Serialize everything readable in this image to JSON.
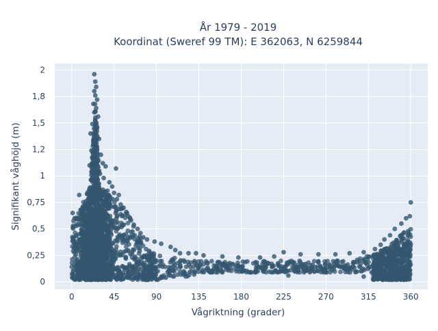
{
  "chart_data": {
    "type": "scatter",
    "title": "År 1979 - 2019",
    "subtitle": "Koordinat (Sweref 99 TM): E 362063, N 6259844",
    "xlabel": "Vågriktning (grader)",
    "ylabel": "Signifikant våghöjd (m)",
    "xlim": [
      -18,
      378
    ],
    "ylim": [
      -0.07,
      2.06
    ],
    "x_ticks": [
      0,
      45,
      90,
      135,
      180,
      225,
      270,
      315,
      360
    ],
    "x_tick_labels": [
      "0",
      "45",
      "90",
      "135",
      "180",
      "225",
      "270",
      "315",
      "360"
    ],
    "y_ticks": [
      0,
      0.25,
      0.5,
      0.75,
      1,
      1.25,
      1.5,
      1.75,
      2
    ],
    "y_tick_labels": [
      "0",
      "0,25",
      "0,5",
      "0,75",
      "1",
      "1,2",
      "1,5",
      "1,8",
      "2"
    ],
    "grid": true,
    "marker_color": "#34566f",
    "plot_background": "#e5ecf6",
    "series": [
      {
        "points": [
          [
            24,
            1.96
          ],
          [
            25,
            1.89
          ],
          [
            26,
            1.84
          ],
          [
            24,
            1.8
          ],
          [
            25,
            1.76
          ],
          [
            27,
            1.72
          ],
          [
            23,
            1.68
          ],
          [
            26,
            1.64
          ],
          [
            24,
            1.6
          ],
          [
            28,
            1.56
          ],
          [
            25,
            1.52
          ],
          [
            22,
            1.49
          ],
          [
            27,
            1.46
          ],
          [
            20,
            1.4
          ],
          [
            29,
            1.35
          ],
          [
            23,
            1.3
          ],
          [
            21,
            1.24
          ],
          [
            31,
            1.2
          ],
          [
            26,
            1.14
          ],
          [
            19,
            1.1
          ],
          [
            33,
            1.12
          ],
          [
            36,
            1.09
          ],
          [
            47,
            1.07
          ],
          [
            30,
            1.02
          ],
          [
            34,
            0.98
          ],
          [
            40,
            0.94
          ],
          [
            43,
            0.9
          ],
          [
            38,
            0.86
          ],
          [
            8,
            0.82
          ],
          [
            45,
            0.84
          ],
          [
            50,
            0.82
          ],
          [
            48,
            0.78
          ],
          [
            15,
            0.76
          ],
          [
            52,
            0.73
          ],
          [
            55,
            0.7
          ],
          [
            58,
            0.66
          ],
          [
            60,
            0.62
          ],
          [
            63,
            0.58
          ],
          [
            1,
            0.65
          ],
          [
            3,
            0.6
          ],
          [
            66,
            0.54
          ],
          [
            70,
            0.5
          ],
          [
            73,
            0.46
          ],
          [
            76,
            0.42
          ],
          [
            80,
            0.4
          ],
          [
            88,
            0.38
          ],
          [
            95,
            0.36
          ],
          [
            105,
            0.33
          ],
          [
            110,
            0.3
          ],
          [
            115,
            0.27
          ],
          [
            124,
            0.27
          ],
          [
            132,
            0.27
          ],
          [
            140,
            0.25
          ],
          [
            160,
            0.24
          ],
          [
            177,
            0.23
          ],
          [
            200,
            0.23
          ],
          [
            215,
            0.24
          ],
          [
            225,
            0.28
          ],
          [
            243,
            0.26
          ],
          [
            262,
            0.26
          ],
          [
            280,
            0.26
          ],
          [
            295,
            0.27
          ],
          [
            310,
            0.28
          ],
          [
            322,
            0.31
          ],
          [
            328,
            0.35
          ],
          [
            332,
            0.4
          ],
          [
            338,
            0.44
          ],
          [
            343,
            0.5
          ],
          [
            350,
            0.55
          ],
          [
            355,
            0.6
          ],
          [
            359,
            0.62
          ],
          [
            360,
            0.75
          ],
          [
            2,
            0.03
          ],
          [
            15,
            0.02
          ],
          [
            35,
            0.03
          ],
          [
            55,
            0.03
          ],
          [
            80,
            0.03
          ],
          [
            100,
            0.04
          ],
          [
            130,
            0.07
          ],
          [
            160,
            0.09
          ],
          [
            190,
            0.09
          ],
          [
            230,
            0.06
          ],
          [
            270,
            0.09
          ],
          [
            310,
            0.05
          ],
          [
            340,
            0.02
          ],
          [
            358,
            0.03
          ]
        ]
      }
    ]
  }
}
